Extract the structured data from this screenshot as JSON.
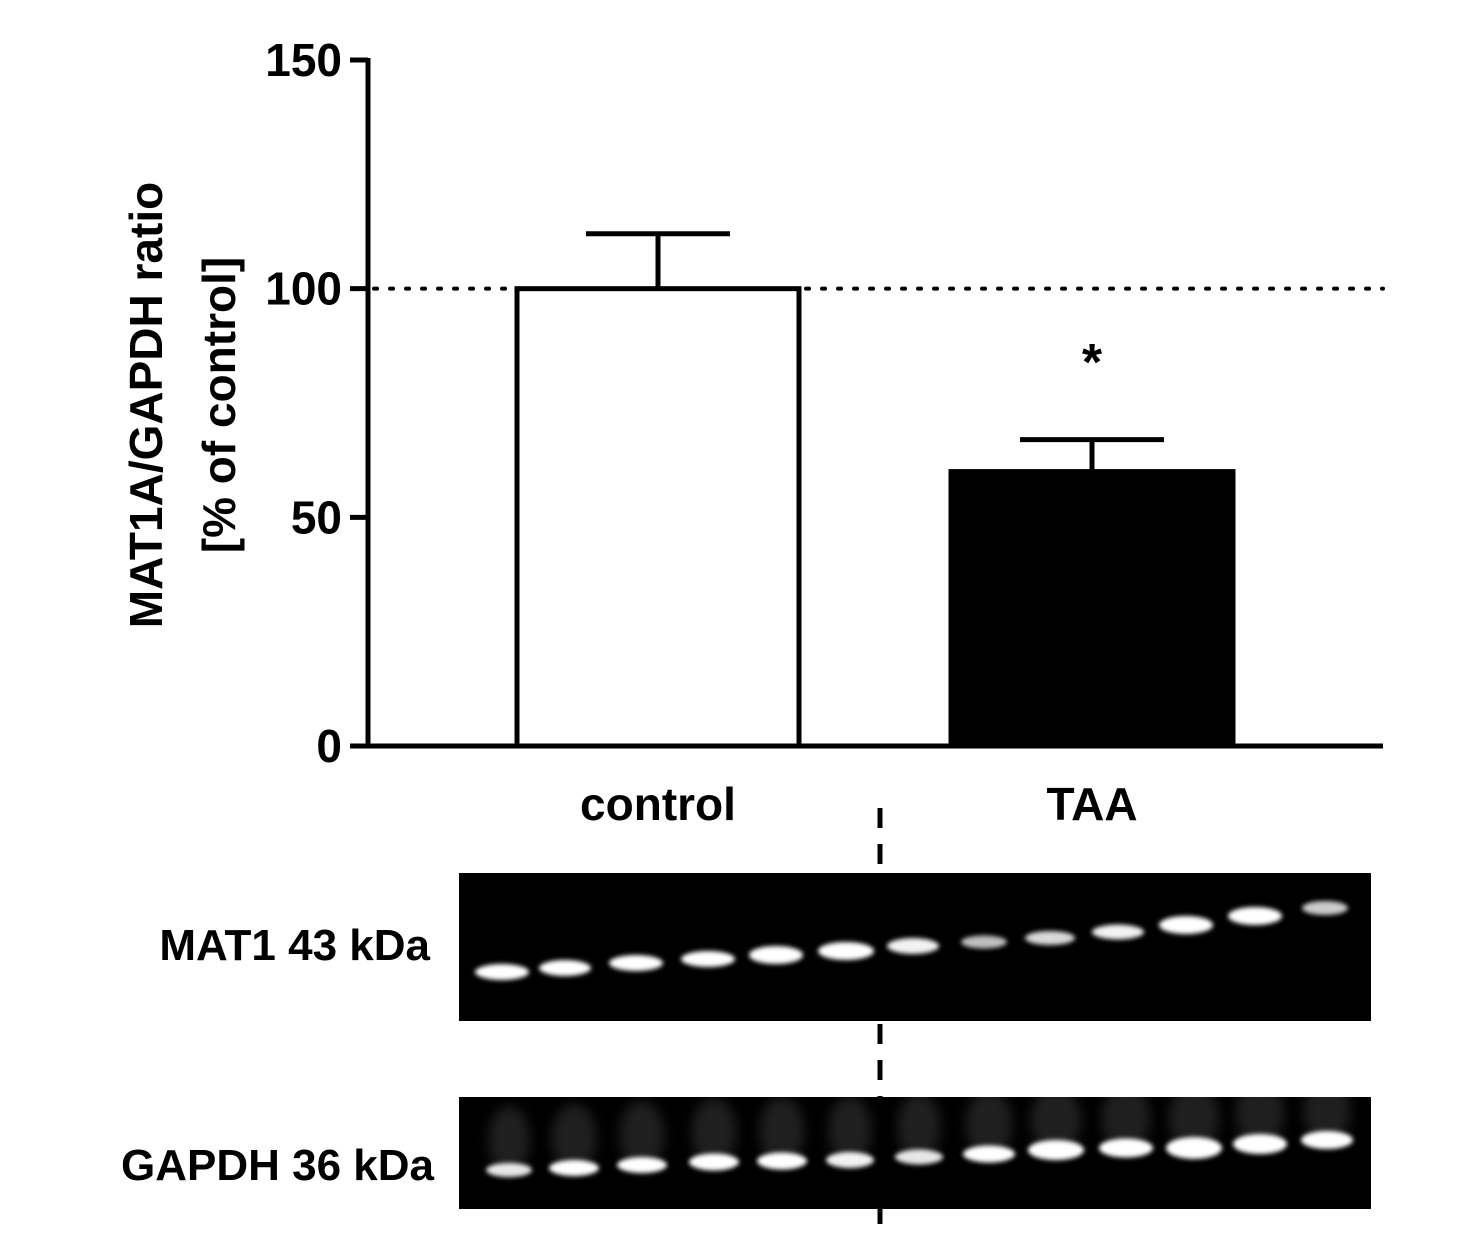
{
  "chart_data": {
    "type": "bar",
    "ylabel_line1": "MAT1A/GAPDH ratio",
    "ylabel_line2": "[% of control]",
    "categories": [
      "control",
      "TAA"
    ],
    "values": [
      100,
      60
    ],
    "error_upper": [
      112,
      67
    ],
    "bar_fill": [
      "#ffffff",
      "#000000"
    ],
    "annotations": [
      {
        "category": "TAA",
        "text": "*"
      }
    ],
    "reference_line": 100,
    "ylim": [
      0,
      150
    ],
    "yticks": [
      "0",
      "50",
      "100",
      "150"
    ],
    "grid": false,
    "legend": "none"
  },
  "blots": {
    "rows": [
      {
        "label": "MAT1 43 kDa",
        "lanes": 13
      },
      {
        "label": "GAPDH 36 kDa",
        "lanes": 13
      }
    ]
  },
  "colors": {
    "background": "#ffffff",
    "ink": "#000000",
    "blot": "#000000",
    "band": "#ffffff"
  }
}
